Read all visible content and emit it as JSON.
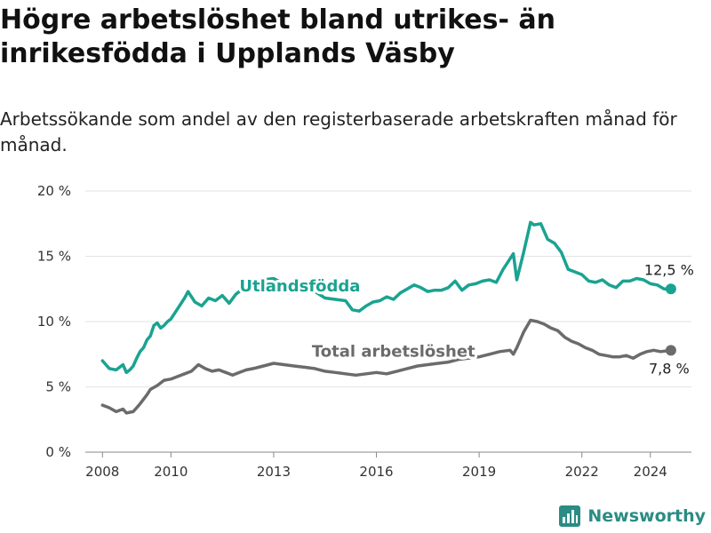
{
  "title": "Högre arbetslöshet bland utrikes- än inrikesfödda i Upplands Väsby",
  "subtitle": "Arbetssökande som andel av den registerbaserade arbetskraften månad för månad.",
  "brand": {
    "name": "Newsworthy",
    "color": "#2a8c84"
  },
  "chart_data": {
    "type": "line",
    "title": "Högre arbetslöshet bland utrikes- än inrikesfödda i Upplands Väsby",
    "ylim": [
      0,
      20
    ],
    "xlim": [
      2007.5,
      2025.2
    ],
    "yticks": [
      0,
      5,
      10,
      15,
      20
    ],
    "ytick_labels": [
      "0 %",
      "5 %",
      "10 %",
      "15 %",
      "20 %"
    ],
    "xticks": [
      2008,
      2010,
      2013,
      2016,
      2019,
      2022,
      2024
    ],
    "xtick_labels": [
      "2008",
      "2010",
      "2013",
      "2016",
      "2019",
      "2022",
      "2024"
    ],
    "grid": true,
    "series": [
      {
        "name": "Utlandsfödda",
        "color": "#1aa391",
        "end_label": "12,5 %",
        "x": [
          2008.0,
          2008.2,
          2008.4,
          2008.6,
          2008.7,
          2008.8,
          2008.9,
          2009.0,
          2009.1,
          2009.2,
          2009.3,
          2009.4,
          2009.5,
          2009.6,
          2009.7,
          2009.8,
          2009.9,
          2010.0,
          2010.2,
          2010.4,
          2010.5,
          2010.7,
          2010.9,
          2011.1,
          2011.3,
          2011.5,
          2011.7,
          2011.9,
          2012.1,
          2012.4,
          2012.7,
          2013.0,
          2013.3,
          2013.6,
          2013.9,
          2014.2,
          2014.5,
          2014.8,
          2015.1,
          2015.3,
          2015.5,
          2015.7,
          2015.9,
          2016.1,
          2016.3,
          2016.5,
          2016.7,
          2016.9,
          2017.1,
          2017.3,
          2017.5,
          2017.7,
          2017.9,
          2018.1,
          2018.3,
          2018.5,
          2018.7,
          2018.9,
          2019.1,
          2019.3,
          2019.5,
          2019.7,
          2019.9,
          2020.0,
          2020.1,
          2020.3,
          2020.5,
          2020.6,
          2020.8,
          2021.0,
          2021.2,
          2021.4,
          2021.6,
          2021.8,
          2022.0,
          2022.2,
          2022.4,
          2022.6,
          2022.8,
          2023.0,
          2023.2,
          2023.4,
          2023.6,
          2023.8,
          2024.0,
          2024.2,
          2024.4,
          2024.6
        ],
        "values": [
          7.0,
          6.4,
          6.3,
          6.7,
          6.1,
          6.3,
          6.6,
          7.2,
          7.7,
          8.0,
          8.6,
          8.9,
          9.7,
          9.9,
          9.5,
          9.7,
          10.0,
          10.2,
          11.0,
          11.8,
          12.3,
          11.5,
          11.2,
          11.8,
          11.6,
          12.0,
          11.4,
          12.1,
          12.5,
          13.0,
          13.2,
          13.3,
          12.9,
          12.7,
          12.5,
          12.3,
          11.8,
          11.7,
          11.6,
          10.9,
          10.8,
          11.2,
          11.5,
          11.6,
          11.9,
          11.7,
          12.2,
          12.5,
          12.8,
          12.6,
          12.3,
          12.4,
          12.4,
          12.6,
          13.1,
          12.4,
          12.8,
          12.9,
          13.1,
          13.2,
          13.0,
          14.0,
          14.8,
          15.2,
          13.2,
          15.3,
          17.6,
          17.4,
          17.5,
          16.3,
          16.0,
          15.3,
          14.0,
          13.8,
          13.6,
          13.1,
          13.0,
          13.2,
          12.8,
          12.6,
          13.1,
          13.1,
          13.3,
          13.2,
          12.9,
          12.8,
          12.5,
          12.5
        ]
      },
      {
        "name": "Total arbetslöshet",
        "color": "#6b6b6b",
        "end_label": "7,8 %",
        "x": [
          2008.0,
          2008.2,
          2008.4,
          2008.6,
          2008.7,
          2008.9,
          2009.0,
          2009.1,
          2009.3,
          2009.4,
          2009.6,
          2009.8,
          2010.0,
          2010.2,
          2010.4,
          2010.6,
          2010.8,
          2011.0,
          2011.2,
          2011.4,
          2011.6,
          2011.8,
          2012.0,
          2012.2,
          2012.4,
          2012.7,
          2013.0,
          2013.3,
          2013.6,
          2013.9,
          2014.2,
          2014.5,
          2014.8,
          2015.1,
          2015.4,
          2015.7,
          2016.0,
          2016.3,
          2016.6,
          2016.9,
          2017.2,
          2017.5,
          2017.8,
          2018.1,
          2018.4,
          2018.7,
          2019.0,
          2019.3,
          2019.6,
          2019.9,
          2020.0,
          2020.1,
          2020.3,
          2020.5,
          2020.7,
          2020.9,
          2021.1,
          2021.3,
          2021.5,
          2021.7,
          2021.9,
          2022.1,
          2022.3,
          2022.5,
          2022.7,
          2022.9,
          2023.1,
          2023.3,
          2023.5,
          2023.7,
          2023.9,
          2024.1,
          2024.3,
          2024.6
        ],
        "values": [
          3.6,
          3.4,
          3.1,
          3.3,
          3.0,
          3.1,
          3.4,
          3.7,
          4.4,
          4.8,
          5.1,
          5.5,
          5.6,
          5.8,
          6.0,
          6.2,
          6.7,
          6.4,
          6.2,
          6.3,
          6.1,
          5.9,
          6.1,
          6.3,
          6.4,
          6.6,
          6.8,
          6.7,
          6.6,
          6.5,
          6.4,
          6.2,
          6.1,
          6.0,
          5.9,
          6.0,
          6.1,
          6.0,
          6.2,
          6.4,
          6.6,
          6.7,
          6.8,
          6.9,
          7.1,
          7.2,
          7.3,
          7.5,
          7.7,
          7.8,
          7.5,
          8.0,
          9.2,
          10.1,
          10.0,
          9.8,
          9.5,
          9.3,
          8.8,
          8.5,
          8.3,
          8.0,
          7.8,
          7.5,
          7.4,
          7.3,
          7.3,
          7.4,
          7.2,
          7.5,
          7.7,
          7.8,
          7.7,
          7.8
        ]
      }
    ]
  }
}
